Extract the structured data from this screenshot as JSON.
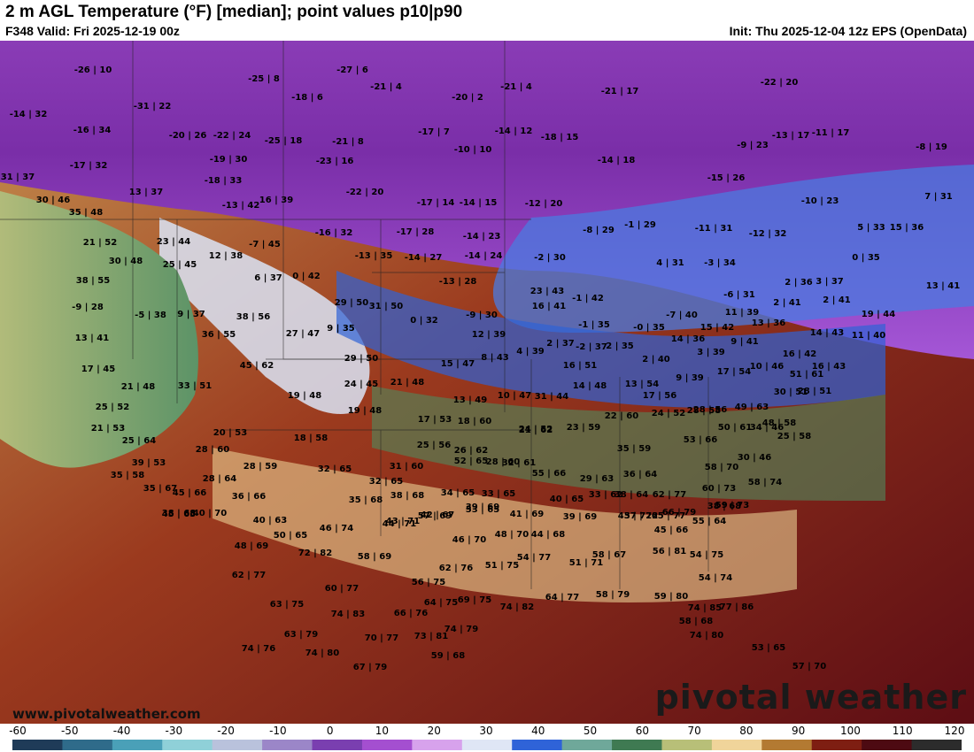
{
  "header": {
    "title": "2 m AGL Temperature (°F) [median]; point values p10|p90",
    "valid": "F348 Valid: Fri 2025-12-19 00z",
    "init": "Init: Thu 2025-12-04 12z EPS (OpenData)"
  },
  "footer": {
    "website": "www.pivotalweather.com",
    "logo": "pivotal weather"
  },
  "colorbar": {
    "ticks": [
      "-60",
      "-50",
      "-40",
      "-30",
      "-20",
      "-10",
      "0",
      "10",
      "20",
      "30",
      "40",
      "50",
      "60",
      "70",
      "80",
      "90",
      "100",
      "110",
      "120"
    ],
    "colors": [
      "#1f3b58",
      "#2f6b8a",
      "#4aa0b8",
      "#8fd0d8",
      "#b9c2dc",
      "#9b86c8",
      "#7a3fb0",
      "#a44fd0",
      "#d7a2ec",
      "#dfe6f5",
      "#2f63d8",
      "#6fa89a",
      "#3f7a52",
      "#b8bf78",
      "#f0d49a",
      "#b37a32",
      "#7e1e12",
      "#4d0a12",
      "#2c2c2c"
    ]
  },
  "points": [
    "-26|10",
    "-25|8",
    "-27|6",
    "-21|4",
    "-18|6",
    "-20|2",
    "-21|4",
    "-21|17",
    "-22|20",
    "-14|32",
    "-31|22",
    "-16|34",
    "-20|26",
    "-22|24",
    "-25|18",
    "-21|8",
    "-17|7",
    "-10|10",
    "-14|12",
    "-18|15",
    "-13|17",
    "-11|17",
    "-8|19",
    "-17|32",
    "-19|30",
    "-23|16",
    "-9|23",
    "-14|18",
    "31|37",
    "-18|33",
    "-13|42",
    "16|39",
    "-22|20",
    "-17|14",
    "-14|15",
    "-12|20",
    "-15|26",
    "7|31",
    "30|46",
    "13|37",
    "-10|23",
    "35|48",
    "-16|32",
    "-17|28",
    "-14|23",
    "-8|29",
    "-1|29",
    "-11|31",
    "-12|32",
    "5|33",
    "15|36",
    "21|52",
    "23|44",
    "12|38",
    "-7|45",
    "-13|35",
    "-14|27",
    "-14|24",
    "-2|30",
    "0|35",
    "30|48",
    "25|45",
    "6|37",
    "0|42",
    "-13|28",
    "4|31",
    "-3|34",
    "13|41",
    "38|55",
    "2|36",
    "3|37",
    "-9|28",
    "-5|38",
    "9|37",
    "38|56",
    "29|50",
    "31|50",
    "23|43",
    "-1|42",
    "2|41",
    "-9|30",
    "0|32",
    "16|41",
    "-6|31",
    "2|41",
    "-7|40",
    "11|39",
    "13|36",
    "19|44",
    "13|41",
    "36|55",
    "27|47",
    "9|35",
    "12|39",
    "-1|35",
    "-0|35",
    "14|36",
    "15|42",
    "9|41",
    "14|43",
    "11|40",
    "17|45",
    "45|62",
    "29|50",
    "15|47",
    "8|43",
    "4|39",
    "2|37",
    "-2|37",
    "2|35",
    "3|39",
    "10|46",
    "16|42",
    "16|43",
    "21|48",
    "33|51",
    "24|45",
    "21|48",
    "16|51",
    "2|40",
    "9|39",
    "17|54",
    "19|48",
    "10|47",
    "13|49",
    "31|44",
    "14|48",
    "13|54",
    "17|56",
    "30|51",
    "28|51",
    "51|61",
    "25|52",
    "19|48",
    "17|53",
    "18|60",
    "22|60",
    "24|52",
    "28|56",
    "49|63",
    "48|58",
    "21|53",
    "20|53",
    "18|58",
    "21|62",
    "23|59",
    "24|52",
    "28|58",
    "50|61",
    "34|46",
    "25|64",
    "25|56",
    "35|59",
    "53|66",
    "25|58",
    "28|60",
    "26|62",
    "28|60",
    "32|61",
    "52|65",
    "30|46",
    "39|53",
    "28|59",
    "32|65",
    "31|60",
    "55|66",
    "58|70",
    "35|58",
    "28|64",
    "32|65",
    "29|63",
    "36|64",
    "58|74",
    "35|67",
    "34|65",
    "33|65",
    "33|62",
    "38|64",
    "62|77",
    "60|73",
    "45|66",
    "36|66",
    "35|68",
    "38|68",
    "40|65",
    "57|72",
    "65|77",
    "59|73",
    "38|68",
    "40|70",
    "40|63",
    "39|69",
    "41|69",
    "39|69",
    "38|68",
    "45|65",
    "57|69",
    "53|65",
    "44|71",
    "43|72",
    "43|71",
    "42|67",
    "66|79",
    "55|64",
    "50|65",
    "46|74",
    "46|70",
    "48|70",
    "44|68",
    "45|66",
    "48|69",
    "72|82",
    "58|69",
    "51|75",
    "54|77",
    "51|71",
    "58|67",
    "56|81",
    "54|75",
    "62|77",
    "60|77",
    "62|76",
    "54|74",
    "74|83",
    "56|75",
    "64|75",
    "69|75",
    "74|82",
    "64|77",
    "58|79",
    "59|80",
    "63|75",
    "66|76",
    "74|85",
    "77|86",
    "63|79",
    "70|77",
    "73|81",
    "58|68",
    "74|80",
    "74|79",
    "74|76",
    "59|68",
    "53|65",
    "74|80",
    "67|79",
    "57|70"
  ]
}
